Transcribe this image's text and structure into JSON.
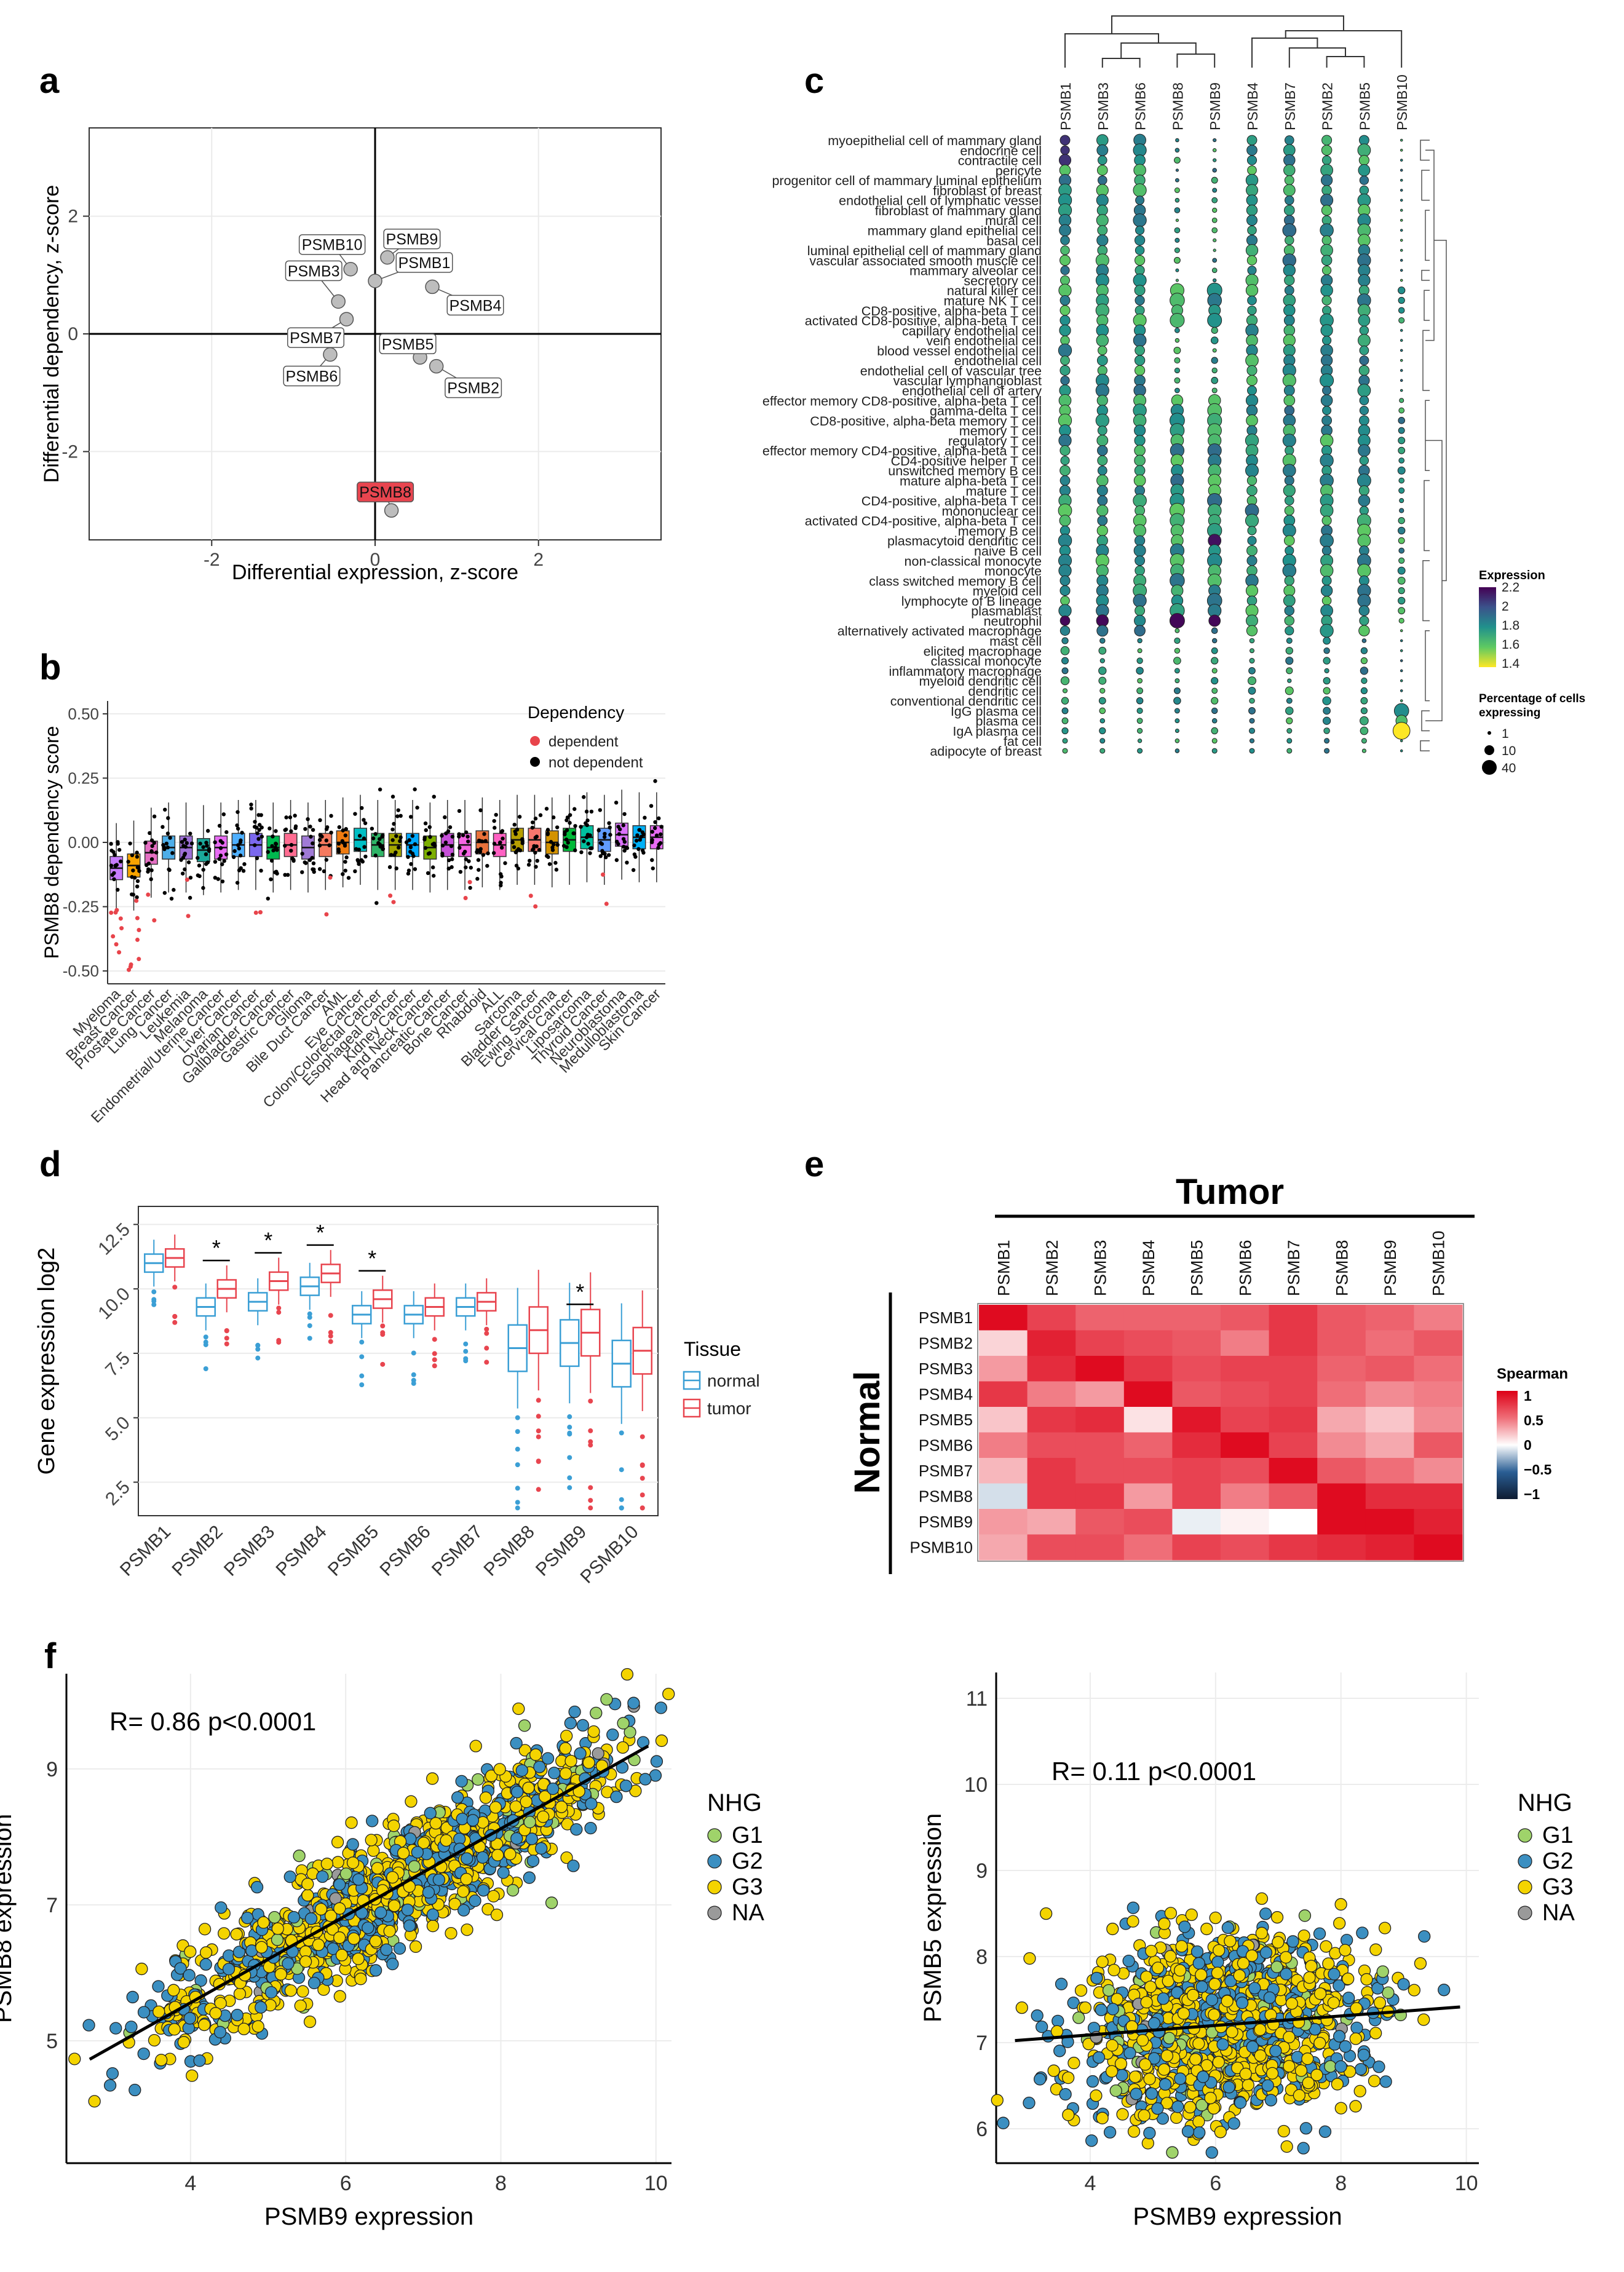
{
  "panel_letters": [
    "a",
    "b",
    "c",
    "d",
    "e",
    "f"
  ],
  "chart_data": [
    {
      "id": "a",
      "type": "scatter",
      "xlabel": "Differential expression, z-score",
      "ylabel": "Differential dependency, z-score",
      "xlim": [
        -3.5,
        3.5
      ],
      "ylim": [
        -3.5,
        3.5
      ],
      "xticks": [
        -2,
        0,
        2
      ],
      "yticks": [
        -2,
        0,
        2
      ],
      "points": [
        {
          "label": "PSMB1",
          "x": 0.0,
          "y": 0.9,
          "highlight": false
        },
        {
          "label": "PSMB2",
          "x": 0.75,
          "y": -0.55,
          "highlight": false
        },
        {
          "label": "PSMB3",
          "x": -0.45,
          "y": 0.55,
          "highlight": false
        },
        {
          "label": "PSMB4",
          "x": 0.7,
          "y": 0.8,
          "highlight": false
        },
        {
          "label": "PSMB5",
          "x": 0.55,
          "y": -0.4,
          "highlight": false
        },
        {
          "label": "PSMB6",
          "x": -0.55,
          "y": -0.35,
          "highlight": false
        },
        {
          "label": "PSMB7",
          "x": -0.35,
          "y": 0.25,
          "highlight": false
        },
        {
          "label": "PSMB8",
          "x": 0.2,
          "y": -3.0,
          "highlight": true
        },
        {
          "label": "PSMB9",
          "x": 0.15,
          "y": 1.3,
          "highlight": false
        },
        {
          "label": "PSMB10",
          "x": -0.3,
          "y": 1.1,
          "highlight": false
        }
      ]
    },
    {
      "id": "b",
      "type": "box",
      "ylabel": "PSMB8 dependency score",
      "ylim": [
        -0.55,
        0.55
      ],
      "yticks": [
        -0.5,
        -0.25,
        0.0,
        0.25,
        0.5
      ],
      "ytick_labels": [
        "-0.50",
        "-0.25",
        "0.00",
        "0.25",
        "0.50"
      ],
      "legend_title": "Dependency",
      "legend": [
        {
          "name": "dependent",
          "color": "#e8444b"
        },
        {
          "name": "not dependent",
          "color": "#000000"
        }
      ],
      "categories": [
        "Myeloma",
        "Breast Cancer",
        "Prostate Cancer",
        "Lung Cancer",
        "Leukemia",
        "Melanoma",
        "Endometrial/Uterine Cancer",
        "Liver Cancer",
        "Ovarian Cancer",
        "Gallbladder Cancer",
        "Gastric Cancer",
        "Glioma",
        "Bile Duct Cancer",
        "AML",
        "Eye Cancer",
        "Colon/Colorectal Cancer",
        "Esophageal Cancer",
        "Kidney Cancer",
        "Head and Neck Cancer",
        "Pancreatic Cancer",
        "Bone Cancer",
        "Rhabdoid",
        "ALL",
        "Sarcoma",
        "Bladder Cancer",
        "Ewing Sarcoma",
        "Cervical Cancer",
        "Liposarcoma",
        "Thyroid Cancer",
        "Neuroblastoma",
        "Medulloblastoma",
        "Skin Cancer"
      ],
      "medians": [
        -0.1,
        -0.09,
        -0.04,
        -0.02,
        -0.02,
        -0.03,
        -0.02,
        -0.01,
        -0.01,
        -0.02,
        -0.01,
        -0.02,
        -0.01,
        0.0,
        0.01,
        -0.01,
        -0.01,
        -0.01,
        -0.02,
        -0.01,
        -0.01,
        0.0,
        -0.01,
        0.01,
        0.01,
        0.0,
        0.01,
        0.02,
        0.01,
        0.03,
        0.02,
        0.02
      ],
      "colors": [
        "#c77cff",
        "#f8a400",
        "#e46fc3",
        "#4daee9",
        "#9d6fd6",
        "#1ba89a",
        "#e76bf3",
        "#4fb0ff",
        "#7b68ee",
        "#00b94f",
        "#ff6c91",
        "#a07ad6",
        "#f57a5f",
        "#f07c11",
        "#00bfc4",
        "#2fb567",
        "#a3a500",
        "#00a9ff",
        "#7cae00",
        "#c64fd8",
        "#f564e3",
        "#e9723b",
        "#ff61c3",
        "#b79f00",
        "#f8766d",
        "#d39200",
        "#00ba38",
        "#00c19f",
        "#619cff",
        "#db72fb",
        "#00b0f6",
        "#e76bf3"
      ]
    },
    {
      "id": "c",
      "type": "dotplot",
      "genes": [
        "PSMB1",
        "PSMB3",
        "PSMB6",
        "PSMB8",
        "PSMB9",
        "PSMB4",
        "PSMB7",
        "PSMB2",
        "PSMB5",
        "PSMB10"
      ],
      "cell_types": [
        "myoepithelial cell of mammary gland",
        "endocrine cell",
        "contractile cell",
        "pericyte",
        "progenitor cell of mammary luminal epithelium",
        "fibroblast of breast",
        "endothelial cell of lymphatic vessel",
        "fibroblast of mammary gland",
        "mural cell",
        "mammary gland epithelial cell",
        "basal cell",
        "luminal epithelial cell of mammary gland",
        "vascular associated smooth muscle cell",
        "mammary alveolar cell",
        "secretory cell",
        "natural killer cell",
        "mature NK T cell",
        "CD8-positive, alpha-beta T cell",
        "activated CD8-positive, alpha-beta T cell",
        "capillary endothelial cell",
        "vein endothelial cell",
        "blood vessel endothelial cell",
        "endothelial cell",
        "endothelial cell of vascular tree",
        "vascular lymphangioblast",
        "endothelial cell of artery",
        "effector memory CD8-positive, alpha-beta T cell",
        "gamma-delta T cell",
        "CD8-positive, alpha-beta memory T cell",
        "memory T cell",
        "regulatory T cell",
        "effector memory CD4-positive, alpha-beta T cell",
        "CD4-positive helper T cell",
        "unswitched memory B cell",
        "mature alpha-beta T cell",
        "mature T cell",
        "CD4-positive, alpha-beta T cell",
        "mononuclear cell",
        "activated CD4-positive, alpha-beta T cell",
        "memory B cell",
        "plasmacytoid dendritic cell",
        "naive B cell",
        "non-classical monocyte",
        "monocyte",
        "class switched memory B cell",
        "myeloid cell",
        "lymphocyte of B lineage",
        "plasmablast",
        "neutrophil",
        "alternatively activated macrophage",
        "mast cell",
        "elicited macrophage",
        "classical monocyte",
        "inflammatory macrophage",
        "myeloid dendritic cell",
        "dendritic cell",
        "conventional dendritic cell",
        "IgG plasma cell",
        "plasma cell",
        "IgA plasma cell",
        "fat cell",
        "adipocyte of breast"
      ],
      "color_legend_title": "Expression",
      "color_legend_ticks": [
        "2.2",
        "2",
        "1.8",
        "1.6",
        "1.4"
      ],
      "size_legend_title": [
        "Percentage of cells",
        "expressing"
      ],
      "size_legend_ticks": [
        "1",
        "10",
        "40"
      ]
    },
    {
      "id": "d",
      "type": "box",
      "ylabel": "Gene expression log2",
      "ylim": [
        1.2,
        13.2
      ],
      "yticks": [
        2.5,
        5.0,
        7.5,
        10.0,
        12.5
      ],
      "ytick_labels": [
        "2.5",
        "5.0",
        "7.5",
        "10.0",
        "12.5"
      ],
      "categories": [
        "PSMB1",
        "PSMB2",
        "PSMB3",
        "PSMB4",
        "PSMB5",
        "PSMB6",
        "PSMB7",
        "PSMB8",
        "PSMB9",
        "PSMB10"
      ],
      "legend_title": "Tissue",
      "series": [
        {
          "name": "normal",
          "color": "#3b9fd5",
          "medians": [
            11.0,
            9.3,
            9.5,
            10.1,
            9.0,
            9.0,
            9.3,
            7.7,
            7.9,
            7.1
          ]
        },
        {
          "name": "tumor",
          "color": "#e8454f",
          "medians": [
            11.2,
            10.0,
            10.3,
            10.6,
            9.6,
            9.3,
            9.5,
            8.4,
            8.3,
            7.6
          ]
        }
      ],
      "significance_mark": "*",
      "significant": [
        "PSMB2",
        "PSMB3",
        "PSMB4",
        "PSMB5",
        "PSMB9"
      ]
    },
    {
      "id": "e",
      "type": "heatmap",
      "column_title": "Tumor",
      "row_title": "Normal",
      "columns": [
        "PSMB1",
        "PSMB2",
        "PSMB3",
        "PSMB4",
        "PSMB5",
        "PSMB6",
        "PSMB7",
        "PSMB8",
        "PSMB9",
        "PSMB10"
      ],
      "rows": [
        "PSMB1",
        "PSMB2",
        "PSMB3",
        "PSMB4",
        "PSMB5",
        "PSMB6",
        "PSMB7",
        "PSMB8",
        "PSMB9",
        "PSMB10"
      ],
      "values": [
        [
          0.95,
          0.7,
          0.55,
          0.55,
          0.55,
          0.6,
          0.75,
          0.6,
          0.55,
          0.45
        ],
        [
          0.15,
          0.85,
          0.7,
          0.65,
          0.6,
          0.45,
          0.75,
          0.6,
          0.5,
          0.6
        ],
        [
          0.35,
          0.8,
          0.95,
          0.75,
          0.65,
          0.7,
          0.7,
          0.55,
          0.6,
          0.5
        ],
        [
          0.75,
          0.45,
          0.35,
          0.95,
          0.6,
          0.65,
          0.7,
          0.5,
          0.4,
          0.45
        ],
        [
          0.2,
          0.75,
          0.8,
          0.1,
          0.9,
          0.7,
          0.75,
          0.3,
          0.2,
          0.4
        ],
        [
          0.45,
          0.65,
          0.65,
          0.55,
          0.8,
          0.95,
          0.7,
          0.4,
          0.3,
          0.6
        ],
        [
          0.25,
          0.75,
          0.65,
          0.65,
          0.7,
          0.65,
          0.95,
          0.6,
          0.5,
          0.4
        ],
        [
          -0.1,
          0.75,
          0.75,
          0.35,
          0.7,
          0.45,
          0.6,
          0.95,
          0.8,
          0.8
        ],
        [
          0.35,
          0.3,
          0.6,
          0.65,
          -0.05,
          0.05,
          0.0,
          0.95,
          0.95,
          0.85
        ],
        [
          0.3,
          0.65,
          0.65,
          0.5,
          0.7,
          0.65,
          0.75,
          0.8,
          0.85,
          0.95
        ]
      ],
      "legend_title": "Spearman",
      "legend_ticks": [
        "1",
        "0.5",
        "0",
        "−0.5",
        "−1"
      ],
      "legend_values": [
        1,
        0.5,
        0,
        -0.5,
        -1
      ]
    },
    {
      "id": "f1",
      "type": "scatter",
      "xlabel": "PSMB9 expression",
      "ylabel": "PSMB8 expression",
      "xlim": [
        2.4,
        10.2
      ],
      "ylim": [
        3.2,
        10.4
      ],
      "xticks": [
        4,
        6,
        8,
        10
      ],
      "yticks": [
        5,
        7,
        9
      ],
      "annotation": "R= 0.86 p<0.0001",
      "fit": {
        "slope": 0.64,
        "intercept": 3.0
      },
      "legend_title": "NHG",
      "legend": [
        {
          "name": "G1",
          "color": "#9fd36a"
        },
        {
          "name": "G2",
          "color": "#3b8fc1"
        },
        {
          "name": "G3",
          "color": "#f4d400"
        },
        {
          "name": "NA",
          "color": "#9a9a9a"
        }
      ]
    },
    {
      "id": "f2",
      "type": "scatter",
      "xlabel": "PSMB9 expression",
      "ylabel": "PSMB5 expression",
      "xlim": [
        2.5,
        10.2
      ],
      "ylim": [
        5.6,
        11.3
      ],
      "xticks": [
        4,
        6,
        8,
        10
      ],
      "yticks": [
        6,
        7,
        8,
        9,
        10,
        11
      ],
      "annotation": "R= 0.11 p<0.0001",
      "fit": {
        "slope": 0.055,
        "intercept": 6.87
      },
      "legend_title": "NHG",
      "legend": [
        {
          "name": "G1",
          "color": "#9fd36a"
        },
        {
          "name": "G2",
          "color": "#3b8fc1"
        },
        {
          "name": "G3",
          "color": "#f4d400"
        },
        {
          "name": "NA",
          "color": "#9a9a9a"
        }
      ]
    }
  ]
}
